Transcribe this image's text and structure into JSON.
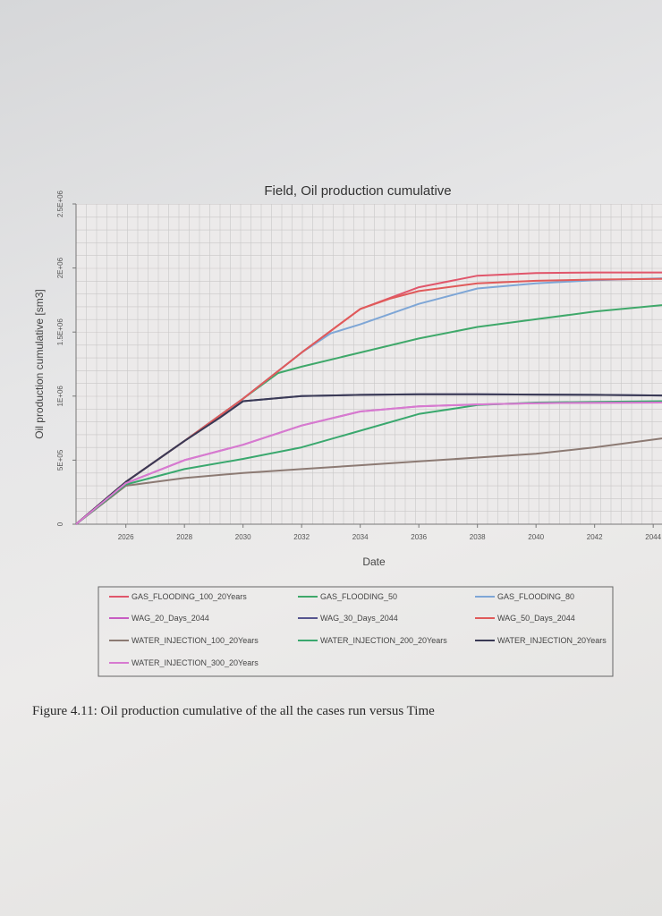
{
  "chart_data": {
    "type": "line",
    "title": "Field, Oil production cumulative",
    "xlabel": "Date",
    "ylabel": "Oil production cumulative [sm3]",
    "x_ticks": [
      "2026",
      "2028",
      "2030",
      "2032",
      "2034",
      "2036",
      "2038",
      "2040",
      "2042",
      "2044"
    ],
    "y_ticks": [
      "0",
      "5E+05",
      "1E+06",
      "1.5E+06",
      "2E+06",
      "2.5E+06"
    ],
    "xlim": [
      2024.3,
      2044.3
    ],
    "ylim": [
      0,
      2500000
    ],
    "grid": true,
    "legend_position": "below",
    "series": [
      {
        "name": "GAS_FLOODING_100_20Years",
        "color": "#e0566b",
        "x": [
          2024.3,
          2026,
          2028,
          2030,
          2032,
          2034,
          2036,
          2038,
          2040,
          2042,
          2044.3
        ],
        "y": [
          0,
          330000,
          650000,
          980000,
          1340000,
          1680000,
          1850000,
          1940000,
          1960000,
          1965000,
          1965000
        ]
      },
      {
        "name": "GAS_FLOODING_50",
        "color": "#3fa86a",
        "x": [
          2024.3,
          2026,
          2028,
          2030,
          2031.2,
          2032,
          2034,
          2036,
          2038,
          2040,
          2042,
          2044.3
        ],
        "y": [
          0,
          330000,
          650000,
          980000,
          1180000,
          1230000,
          1340000,
          1450000,
          1540000,
          1600000,
          1660000,
          1710000
        ]
      },
      {
        "name": "GAS_FLOODING_80",
        "color": "#7ea6d6",
        "x": [
          2024.3,
          2026,
          2028,
          2030,
          2032,
          2033,
          2034,
          2036,
          2038,
          2040,
          2042,
          2044.3
        ],
        "y": [
          0,
          330000,
          650000,
          980000,
          1340000,
          1490000,
          1560000,
          1720000,
          1840000,
          1880000,
          1905000,
          1920000
        ]
      },
      {
        "name": "WAG_20_Days_2044",
        "color": "#c75cc2",
        "x": [
          2024.3,
          2026,
          2028,
          2030,
          2032,
          2034,
          2036,
          2038,
          2040,
          2042,
          2044.3
        ],
        "y": [
          0,
          320000,
          500000,
          620000,
          770000,
          880000,
          920000,
          935000,
          945000,
          948000,
          950000
        ]
      },
      {
        "name": "WAG_30_Days_2044",
        "color": "#56558f",
        "x": [
          2024.3,
          2026,
          2028,
          2029.2,
          2030,
          2032,
          2034,
          2036,
          2038,
          2040,
          2042,
          2044.3
        ],
        "y": [
          0,
          330000,
          650000,
          830000,
          960000,
          1000000,
          1010000,
          1015000,
          1015000,
          1012000,
          1010000,
          1005000
        ]
      },
      {
        "name": "WAG_50_Days_2044",
        "color": "#e05a5a",
        "x": [
          2024.3,
          2026,
          2028,
          2030,
          2032,
          2034,
          2035,
          2036,
          2038,
          2040,
          2042,
          2044.3
        ],
        "y": [
          0,
          330000,
          650000,
          980000,
          1340000,
          1680000,
          1760000,
          1820000,
          1880000,
          1900000,
          1910000,
          1915000
        ]
      },
      {
        "name": "WATER_INJECTION_100_20Years",
        "color": "#8c7a73",
        "x": [
          2024.3,
          2026,
          2028,
          2030,
          2032,
          2034,
          2036,
          2038,
          2040,
          2042,
          2044.3
        ],
        "y": [
          0,
          300000,
          360000,
          400000,
          430000,
          460000,
          490000,
          520000,
          550000,
          600000,
          670000
        ]
      },
      {
        "name": "WATER_INJECTION_200_20Years",
        "color": "#3aa86e",
        "x": [
          2024.3,
          2026,
          2028,
          2030,
          2032,
          2034,
          2036,
          2038,
          2040,
          2042,
          2044.3
        ],
        "y": [
          0,
          310000,
          430000,
          510000,
          600000,
          730000,
          860000,
          930000,
          950000,
          955000,
          960000
        ]
      },
      {
        "name": "WATER_INJECTION_20Years",
        "color": "#3a3a55",
        "x": [
          2024.3,
          2026,
          2028,
          2029.2,
          2030,
          2032,
          2034,
          2036,
          2038,
          2040,
          2042,
          2044.3
        ],
        "y": [
          0,
          330000,
          650000,
          830000,
          960000,
          1000000,
          1010000,
          1015000,
          1015000,
          1012000,
          1010000,
          1005000
        ]
      },
      {
        "name": "WATER_INJECTION_300_20Years",
        "color": "#d77ad0",
        "x": [
          2024.3,
          2026,
          2028,
          2030,
          2032,
          2034,
          2036,
          2038,
          2040,
          2042,
          2044.3
        ],
        "y": [
          0,
          320000,
          500000,
          620000,
          770000,
          880000,
          920000,
          935000,
          945000,
          948000,
          950000
        ]
      }
    ]
  },
  "caption": "Figure 4.11: Oil production cumulative of the all the cases run versus Time"
}
